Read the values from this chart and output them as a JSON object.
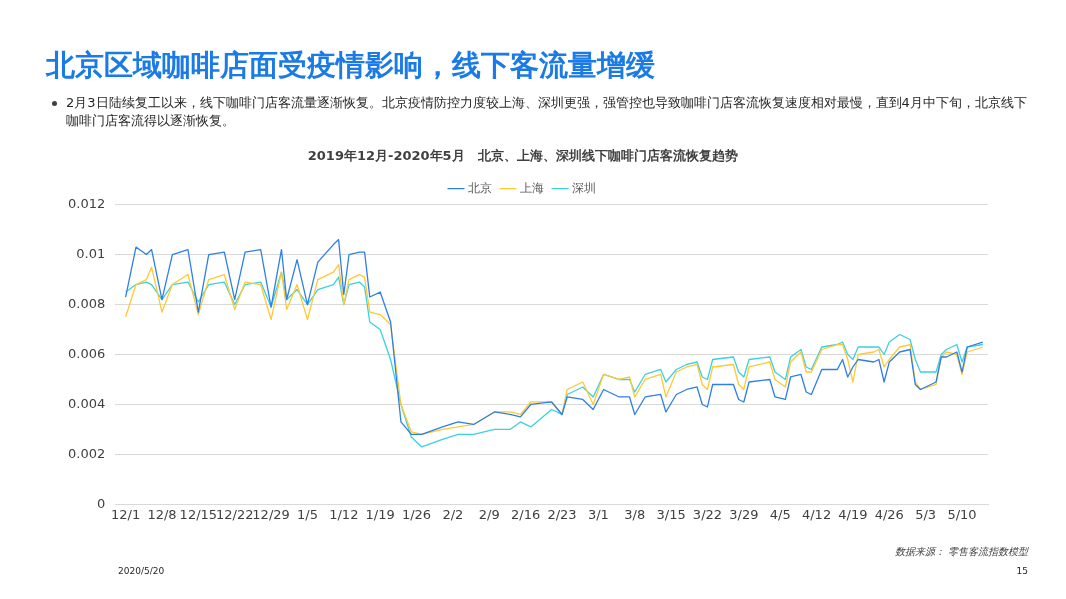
{
  "chart_data": {
    "type": "line",
    "title": "2019年12月-2020年5月   北京、上海、深圳线下咖啡门店客流恢复趋势",
    "annotations": [
      "北京区域咖啡店面受疫情影响，线下客流量增缓",
      "2月3日陆续复工以来，线下咖啡门店客流量逐渐恢复。北京疫情防控力度较上海、深圳更强，强管控也导致咖啡门店客流恢复速度相对最慢，直到4月中下旬，北京线下咖啡门店客流得以逐渐恢复。",
      "数据来源： 零售客流指数模型",
      "2020/5/20",
      "15"
    ],
    "x": [
      "2019-12-01",
      "2019-12-03",
      "2019-12-05",
      "2019-12-06",
      "2019-12-08",
      "2019-12-10",
      "2019-12-13",
      "2019-12-15",
      "2019-12-17",
      "2019-12-20",
      "2019-12-22",
      "2019-12-24",
      "2019-12-27",
      "2019-12-29",
      "2019-12-31",
      "2020-01-01",
      "2020-01-03",
      "2020-01-05",
      "2020-01-07",
      "2020-01-10",
      "2020-01-11",
      "2020-01-12",
      "2020-01-13",
      "2020-01-15",
      "2020-01-16",
      "2020-01-17",
      "2020-01-19",
      "2020-01-21",
      "2020-01-23",
      "2020-01-25",
      "2020-01-27",
      "2020-01-31",
      "2020-02-03",
      "2020-02-06",
      "2020-02-10",
      "2020-02-13",
      "2020-02-15",
      "2020-02-17",
      "2020-02-21",
      "2020-02-23",
      "2020-02-24",
      "2020-02-27",
      "2020-02-29",
      "2020-03-02",
      "2020-03-05",
      "2020-03-07",
      "2020-03-08",
      "2020-03-10",
      "2020-03-13",
      "2020-03-14",
      "2020-03-16",
      "2020-03-18",
      "2020-03-20",
      "2020-03-21",
      "2020-03-22",
      "2020-03-23",
      "2020-03-27",
      "2020-03-28",
      "2020-03-29",
      "2020-03-30",
      "2020-04-03",
      "2020-04-04",
      "2020-04-06",
      "2020-04-07",
      "2020-04-09",
      "2020-04-10",
      "2020-04-11",
      "2020-04-13",
      "2020-04-16",
      "2020-04-17",
      "2020-04-18",
      "2020-04-19",
      "2020-04-20",
      "2020-04-23",
      "2020-04-24",
      "2020-04-25",
      "2020-04-26",
      "2020-04-28",
      "2020-04-30",
      "2020-05-01",
      "2020-05-02",
      "2020-05-05",
      "2020-05-06",
      "2020-05-07",
      "2020-05-09",
      "2020-05-10",
      "2020-05-11",
      "2020-05-14"
    ],
    "series": [
      {
        "name": "北京",
        "color": "#2e7fe8",
        "values": [
          0.0083,
          0.0103,
          0.01,
          0.0102,
          0.0082,
          0.01,
          0.0102,
          0.0077,
          0.01,
          0.0101,
          0.0082,
          0.0101,
          0.0102,
          0.0079,
          0.0102,
          0.0082,
          0.0098,
          0.008,
          0.0097,
          0.0104,
          0.0106,
          0.0084,
          0.01,
          0.0101,
          0.0101,
          0.0083,
          0.0085,
          0.0073,
          0.0033,
          0.0028,
          0.0028,
          0.0031,
          0.0033,
          0.0032,
          0.0037,
          0.0036,
          0.0035,
          0.004,
          0.0041,
          0.0036,
          0.0043,
          0.0042,
          0.0038,
          0.0046,
          0.0043,
          0.0043,
          0.0036,
          0.0043,
          0.0044,
          0.0037,
          0.0044,
          0.0046,
          0.0047,
          0.004,
          0.0039,
          0.0048,
          0.0048,
          0.0042,
          0.0041,
          0.0049,
          0.005,
          0.0043,
          0.0042,
          0.0051,
          0.0052,
          0.0045,
          0.0044,
          0.0054,
          0.0054,
          0.0058,
          0.0051,
          0.0055,
          0.0058,
          0.0057,
          0.0058,
          0.0049,
          0.0057,
          0.0061,
          0.0062,
          0.0048,
          0.0046,
          0.0049,
          0.0059,
          0.0059,
          0.0061,
          0.0053,
          0.0063,
          0.0065
        ]
      },
      {
        "name": "上海",
        "color": "#ffc933",
        "values": [
          0.0075,
          0.0088,
          0.009,
          0.0095,
          0.0077,
          0.0088,
          0.0092,
          0.0076,
          0.009,
          0.0092,
          0.0078,
          0.0089,
          0.0088,
          0.0074,
          0.0093,
          0.0078,
          0.0088,
          0.0074,
          0.009,
          0.0093,
          0.0096,
          0.008,
          0.009,
          0.0092,
          0.0091,
          0.0077,
          0.0076,
          0.0072,
          0.004,
          0.0029,
          0.0028,
          0.003,
          0.0031,
          0.0032,
          0.0037,
          0.0037,
          0.0036,
          0.0041,
          0.0041,
          0.0036,
          0.0046,
          0.0049,
          0.004,
          0.0052,
          0.005,
          0.0051,
          0.0043,
          0.005,
          0.0052,
          0.0043,
          0.0053,
          0.0055,
          0.0056,
          0.0048,
          0.0046,
          0.0055,
          0.0056,
          0.0048,
          0.0046,
          0.0055,
          0.0057,
          0.005,
          0.0047,
          0.0057,
          0.0061,
          0.0053,
          0.0053,
          0.0062,
          0.0064,
          0.0064,
          0.0058,
          0.0049,
          0.006,
          0.0061,
          0.0062,
          0.0055,
          0.0058,
          0.0063,
          0.0064,
          0.0049,
          0.0046,
          0.0048,
          0.0059,
          0.0061,
          0.006,
          0.0052,
          0.0061,
          0.0063
        ]
      },
      {
        "name": "深圳",
        "color": "#3cd0e0",
        "values": [
          0.0085,
          0.0088,
          0.0089,
          0.0088,
          0.0082,
          0.0088,
          0.0089,
          0.0081,
          0.0088,
          0.0089,
          0.008,
          0.0088,
          0.0089,
          0.0079,
          0.0093,
          0.0082,
          0.0086,
          0.008,
          0.0086,
          0.0088,
          0.0091,
          0.008,
          0.0088,
          0.0089,
          0.0087,
          0.0073,
          0.007,
          0.0058,
          0.004,
          0.0027,
          0.0023,
          0.0026,
          0.0028,
          0.0028,
          0.003,
          0.003,
          0.0033,
          0.0031,
          0.0038,
          0.0036,
          0.0044,
          0.0047,
          0.0043,
          0.0052,
          0.005,
          0.005,
          0.0045,
          0.0052,
          0.0054,
          0.0049,
          0.0054,
          0.0056,
          0.0057,
          0.0051,
          0.005,
          0.0058,
          0.0059,
          0.0053,
          0.0051,
          0.0058,
          0.0059,
          0.0053,
          0.005,
          0.0059,
          0.0062,
          0.0055,
          0.0054,
          0.0063,
          0.0064,
          0.0065,
          0.006,
          0.0058,
          0.0063,
          0.0063,
          0.0063,
          0.006,
          0.0065,
          0.0068,
          0.0066,
          0.0058,
          0.0053,
          0.0053,
          0.006,
          0.0062,
          0.0064,
          0.0057,
          0.0063,
          0.0064
        ]
      }
    ],
    "xlim": [
      "2019-11-29",
      "2020-05-15"
    ],
    "xticks": [
      {
        "value": "2019-12-01",
        "label": "12/1"
      },
      {
        "value": "2019-12-08",
        "label": "12/8"
      },
      {
        "value": "2019-12-15",
        "label": "12/15"
      },
      {
        "value": "2019-12-22",
        "label": "12/22"
      },
      {
        "value": "2019-12-29",
        "label": "12/29"
      },
      {
        "value": "2020-01-05",
        "label": "1/5"
      },
      {
        "value": "2020-01-12",
        "label": "1/12"
      },
      {
        "value": "2020-01-19",
        "label": "1/19"
      },
      {
        "value": "2020-01-26",
        "label": "1/26"
      },
      {
        "value": "2020-02-02",
        "label": "2/2"
      },
      {
        "value": "2020-02-09",
        "label": "2/9"
      },
      {
        "value": "2020-02-16",
        "label": "2/16"
      },
      {
        "value": "2020-02-23",
        "label": "2/23"
      },
      {
        "value": "2020-03-01",
        "label": "3/1"
      },
      {
        "value": "2020-03-08",
        "label": "3/8"
      },
      {
        "value": "2020-03-15",
        "label": "3/15"
      },
      {
        "value": "2020-03-22",
        "label": "3/22"
      },
      {
        "value": "2020-03-29",
        "label": "3/29"
      },
      {
        "value": "2020-04-05",
        "label": "4/5"
      },
      {
        "value": "2020-04-12",
        "label": "4/12"
      },
      {
        "value": "2020-04-19",
        "label": "4/19"
      },
      {
        "value": "2020-04-26",
        "label": "4/26"
      },
      {
        "value": "2020-05-03",
        "label": "5/3"
      },
      {
        "value": "2020-05-10",
        "label": "5/10"
      }
    ],
    "ylim": [
      0,
      0.012
    ],
    "yticks": [
      0,
      0.002,
      0.004,
      0.006,
      0.008,
      0.01,
      0.012
    ],
    "grid": "y",
    "legend": "top"
  }
}
